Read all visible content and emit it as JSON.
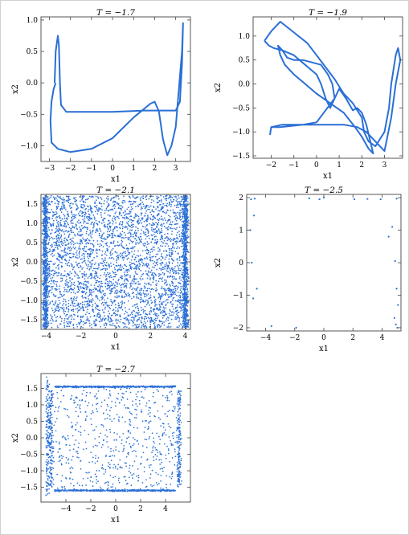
{
  "chart_data": [
    {
      "type": "line",
      "title": "T = −1.7",
      "xlabel": "x1",
      "ylabel": "x2",
      "xlim": [
        -3.4,
        3.7
      ],
      "ylim": [
        -1.25,
        1.05
      ],
      "xticks": [
        -3,
        -2,
        -1,
        0,
        1,
        2,
        3
      ],
      "yticks": [
        -1.0,
        -0.5,
        0.0,
        0.5,
        1.0
      ],
      "xticklabels": [
        "−3",
        "−2",
        "−1",
        "0",
        "1",
        "2",
        "3"
      ],
      "yticklabels": [
        "−1.0",
        "−0.5",
        "0.0",
        "0.5",
        "1.0"
      ],
      "series": [
        {
          "x": [
            -2.75,
            -2.7,
            -2.6,
            -2.55,
            -2.5,
            -2.45,
            -2.2,
            0.0,
            1.5,
            2.5,
            3.0,
            3.2,
            3.3,
            3.35,
            3.3,
            3.1,
            3.0,
            2.8,
            2.6,
            2.4,
            2.2,
            2.0,
            1.8,
            1.0,
            0.0,
            -1.0,
            -2.0,
            -2.6,
            -2.9,
            -2.95,
            -2.9,
            -2.8,
            -2.7
          ],
          "y": [
            0.0,
            0.5,
            0.75,
            0.6,
            0.0,
            -0.35,
            -0.46,
            -0.46,
            -0.44,
            -0.44,
            -0.44,
            -0.3,
            0.3,
            0.95,
            0.5,
            -0.3,
            -0.7,
            -1.0,
            -1.15,
            -0.9,
            -0.45,
            -0.3,
            -0.33,
            -0.55,
            -0.88,
            -1.05,
            -1.1,
            -1.05,
            -0.95,
            -0.6,
            -0.3,
            -0.1,
            0.0
          ]
        }
      ]
    },
    {
      "type": "line",
      "title": "T = −1.9",
      "xlabel": "x1",
      "ylabel": "x2",
      "xlim": [
        -2.8,
        3.8
      ],
      "ylim": [
        -1.55,
        1.4
      ],
      "xticks": [
        -2,
        -1,
        0,
        1,
        2,
        3
      ],
      "yticks": [
        -1.5,
        -1.0,
        -0.5,
        0.0,
        0.5,
        1.0
      ],
      "xticklabels": [
        "−2",
        "−1",
        "0",
        "1",
        "2",
        "3"
      ],
      "yticklabels": [
        "−1.5",
        "−1.0",
        "−0.5",
        "0.0",
        "0.5",
        "1.0"
      ],
      "series": [
        {
          "x": [
            -2.3,
            -2.0,
            -1.6,
            -1.2,
            -0.8,
            -0.4,
            0.0,
            0.4,
            0.8,
            1.2,
            1.6,
            2.0,
            2.1,
            2.3,
            2.6,
            3.0,
            3.2,
            3.3,
            3.4,
            3.5,
            3.6,
            3.7,
            3.5,
            3.3,
            3.0,
            2.6,
            2.2,
            1.8,
            1.2,
            0.6,
            0.0,
            -1.0,
            -1.5,
            -2.0,
            -2.05,
            -2.0,
            -1.9,
            -1.6,
            -1.2,
            -0.6,
            0.0,
            0.4,
            0.8,
            1.0,
            1.3,
            1.6,
            1.8,
            2.0,
            2.2,
            2.5,
            2.3,
            2.0,
            1.7,
            1.2,
            0.6,
            0.0,
            -0.5,
            -1.0,
            -1.4,
            -1.6,
            -1.7,
            -1.5,
            -1.3,
            -1.0,
            -0.6,
            -0.2,
            0.2,
            0.5,
            0.7,
            0.8,
            0.6,
            0.4,
            0.2,
            0.0,
            -0.5,
            -1.0,
            -1.5,
            -1.9,
            -2.1,
            -2.3
          ],
          "y": [
            0.9,
            1.1,
            1.3,
            1.15,
            1.0,
            0.85,
            0.6,
            0.35,
            0.1,
            -0.2,
            -0.4,
            -0.7,
            -1.0,
            -1.2,
            -1.3,
            -1.0,
            -0.5,
            0.0,
            0.3,
            0.6,
            0.75,
            0.5,
            0.0,
            -0.7,
            -1.4,
            -1.2,
            -1.0,
            -0.9,
            -0.85,
            -0.85,
            -0.85,
            -0.85,
            -0.85,
            -0.9,
            -1.05,
            -0.9,
            -0.9,
            -0.9,
            -0.88,
            -0.85,
            -0.8,
            -0.55,
            -0.3,
            -0.1,
            -0.3,
            -0.55,
            -0.5,
            -0.6,
            -0.85,
            -1.45,
            -1.35,
            -1.1,
            -0.9,
            -0.6,
            -0.4,
            -0.2,
            0.0,
            0.2,
            0.4,
            0.6,
            0.8,
            0.7,
            0.55,
            0.5,
            0.5,
            0.45,
            0.4,
            0.2,
            0.0,
            -0.3,
            -0.5,
            -0.3,
            0.0,
            0.2,
            0.4,
            0.6,
            0.7,
            0.75,
            0.8,
            0.9
          ]
        }
      ]
    },
    {
      "type": "scatter",
      "title": "T = −2.1",
      "xlabel": "x1",
      "ylabel": "x2",
      "xlim": [
        -4.3,
        4.3
      ],
      "ylim": [
        -1.75,
        1.75
      ],
      "xticks": [
        -4,
        -2,
        0,
        2,
        4
      ],
      "yticks": [
        -1.5,
        -1.0,
        -0.5,
        0.0,
        0.5,
        1.0,
        1.5
      ],
      "xticklabels": [
        "−4",
        "−2",
        "0",
        "2",
        "4"
      ],
      "yticklabels": [
        "−1.5",
        "−1.0",
        "−0.5",
        "0.0",
        "0.5",
        "1.0",
        "1.5"
      ],
      "distribution": {
        "mode": "dense-uniform",
        "x_range": [
          -4.2,
          4.2
        ],
        "y_range": [
          -1.72,
          1.72
        ],
        "edge_bands_x": [
          -4.0,
          3.9
        ]
      }
    },
    {
      "type": "scatter",
      "title": "T = −2.5",
      "xlabel": "x1",
      "ylabel": "x2",
      "xlim": [
        -5.3,
        5.3
      ],
      "ylim": [
        -2.1,
        2.1
      ],
      "xticks": [
        -4,
        -2,
        0,
        2,
        4
      ],
      "yticks": [
        -2,
        -1,
        0,
        1,
        2
      ],
      "xticklabels": [
        "−4",
        "−2",
        "0",
        "2",
        "4"
      ],
      "yticklabels": [
        "−2",
        "−1",
        "0",
        "1",
        "2"
      ],
      "series": [
        {
          "x": [
            -5.0,
            -4.8,
            -4.95,
            -5.05,
            -4.6,
            -4.85,
            -3.6,
            -1.9,
            -0.3,
            0.0,
            2.1,
            3.9,
            4.45,
            4.7,
            4.9,
            5.0,
            5.1,
            4.85,
            4.95,
            5.05,
            5.0,
            -4.75,
            -1.0,
            3.0
          ],
          "y": [
            1.95,
            1.45,
            0.0,
            1.0,
            -0.8,
            -1.1,
            -1.95,
            -2.0,
            1.95,
            2.0,
            1.95,
            1.95,
            0.8,
            1.1,
            0.05,
            -0.8,
            -1.3,
            -1.7,
            -1.9,
            -2.0,
            1.97,
            1.97,
            1.98,
            1.96
          ]
        }
      ]
    },
    {
      "type": "scatter",
      "title": "T = −2.7",
      "xlabel": "x1",
      "ylabel": "x2",
      "xlim": [
        -6.0,
        6.0
      ],
      "ylim": [
        -1.95,
        1.95
      ],
      "xticks": [
        -4,
        -2,
        0,
        2,
        4
      ],
      "yticks": [
        -1.5,
        -1.0,
        -0.5,
        0.0,
        0.5,
        1.0,
        1.5
      ],
      "xticklabels": [
        "−4",
        "−2",
        "0",
        "2",
        "4"
      ],
      "yticklabels": [
        "−1.5",
        "−1.0",
        "−0.5",
        "0.0",
        "0.5",
        "1.0",
        "1.5"
      ],
      "distribution": {
        "mode": "rectangular-orbit",
        "top_y": 1.55,
        "bottom_y": -1.6,
        "left_x": -5.2,
        "right_x": 5.1
      }
    }
  ]
}
